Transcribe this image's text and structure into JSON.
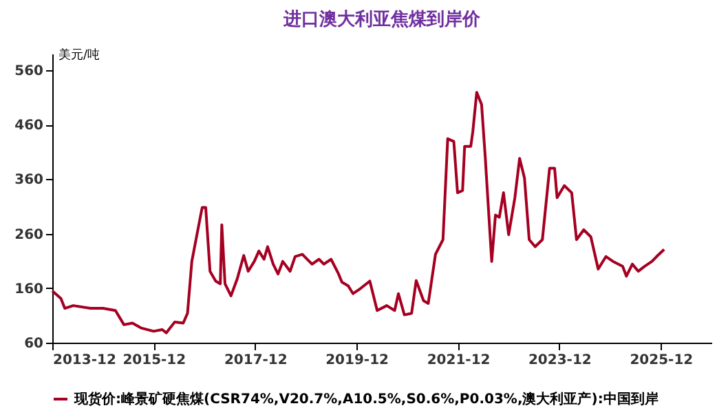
{
  "chart_data": {
    "type": "line",
    "title": "进口澳大利亚焦煤到岸价",
    "ylabel": "美元/吨",
    "x": [
      "2013-12-01",
      "2014-02-01",
      "2014-03-01",
      "2014-05-01",
      "2014-09-01",
      "2014-12-01",
      "2015-03-01",
      "2015-05-01",
      "2015-07-01",
      "2015-09-01",
      "2015-12-01",
      "2016-02-01",
      "2016-03-01",
      "2016-05-01",
      "2016-07-01",
      "2016-08-01",
      "2016-09-01",
      "2016-11-01",
      "2016-11-15",
      "2016-12-10",
      "2017-01-10",
      "2017-02-20",
      "2017-03-25",
      "2017-04-05",
      "2017-04-28",
      "2017-06-10",
      "2017-07-25",
      "2017-09-10",
      "2017-10-12",
      "2017-11-25",
      "2017-12-28",
      "2018-02-03",
      "2018-03-01",
      "2018-04-10",
      "2018-05-15",
      "2018-06-18",
      "2018-08-10",
      "2018-09-15",
      "2018-11-06",
      "2019-01-15",
      "2019-03-06",
      "2019-04-10",
      "2019-06-01",
      "2019-07-25",
      "2019-08-18",
      "2019-10-03",
      "2019-11-06",
      "2019-12-28",
      "2020-03-06",
      "2020-04-28",
      "2020-07-06",
      "2020-09-01",
      "2020-09-28",
      "2020-11-10",
      "2021-01-01",
      "2021-02-03",
      "2021-03-28",
      "2021-05-01",
      "2021-06-22",
      "2021-08-15",
      "2021-09-18",
      "2021-11-01",
      "2021-11-28",
      "2022-01-03",
      "2022-01-18",
      "2022-03-03",
      "2022-03-18",
      "2022-04-15",
      "2022-05-20",
      "2022-06-15",
      "2022-08-01",
      "2022-08-28",
      "2022-09-25",
      "2022-10-25",
      "2022-12-01",
      "2023-01-15",
      "2023-02-18",
      "2023-03-25",
      "2023-04-28",
      "2023-06-10",
      "2023-08-01",
      "2023-09-22",
      "2023-10-28",
      "2023-11-15",
      "2024-01-06",
      "2024-02-28",
      "2024-04-03",
      "2024-05-25",
      "2024-07-15",
      "2024-09-06",
      "2024-11-01",
      "2024-12-22",
      "2025-03-01",
      "2025-03-28",
      "2025-05-10",
      "2025-06-22",
      "2025-08-06",
      "2025-09-28",
      "2025-11-01",
      "2025-12-25"
    ],
    "series": [
      {
        "name": "现货价:峰景矿硬焦煤(CSR74%,V20.7%,A10.5%,S0.6%,P0.03%,澳大利亚产):中国到岸",
        "color": "#a50021",
        "values": [
          155,
          141,
          123,
          128,
          123,
          123,
          119,
          93,
          96,
          87,
          81,
          84,
          78,
          98,
          96,
          114,
          209,
          290,
          308,
          308,
          191,
          173,
          168,
          276,
          168,
          146,
          177,
          220,
          191,
          209,
          228,
          213,
          236,
          204,
          186,
          209,
          191,
          218,
          222,
          204,
          213,
          204,
          213,
          186,
          171,
          164,
          150,
          159,
          173,
          119,
          128,
          119,
          150,
          111,
          114,
          174,
          137,
          132,
          222,
          249,
          434,
          429,
          335,
          339,
          420,
          420,
          447,
          519,
          497,
          402,
          209,
          294,
          290,
          335,
          258,
          326,
          398,
          362,
          249,
          236,
          249,
          380,
          380,
          326,
          348,
          335,
          249,
          267,
          254,
          195,
          218,
          209,
          200,
          182,
          204,
          191,
          200,
          209,
          218,
          231
        ]
      }
    ],
    "xlim": [
      "2013-12",
      "2026-12"
    ],
    "xticks": [
      "2013-12",
      "2015-12",
      "2017-12",
      "2019-12",
      "2021-12",
      "2023-12",
      "2025-12"
    ],
    "ylim": [
      60,
      590
    ],
    "yticks": [
      60,
      160,
      260,
      360,
      460,
      560
    ],
    "grid": false,
    "legend": "bottom",
    "marker": "none",
    "line_style": "solid"
  }
}
